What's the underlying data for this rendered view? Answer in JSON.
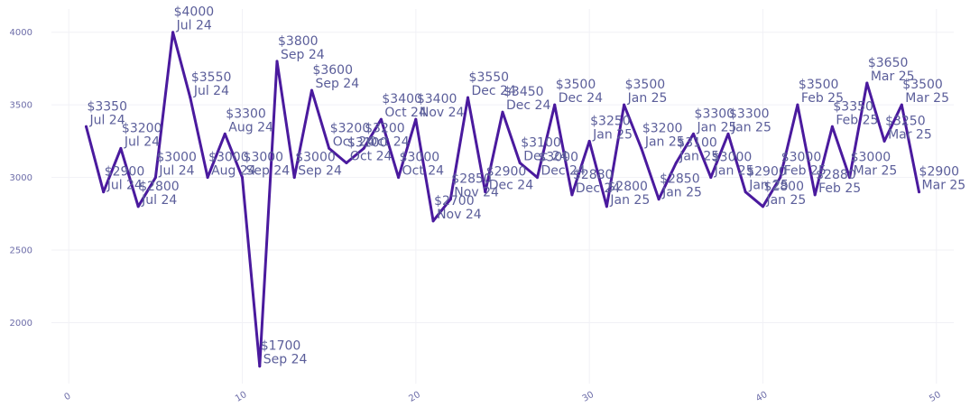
{
  "chart_data": {
    "type": "line",
    "title": "",
    "xlabel": "",
    "ylabel": "",
    "xlim": [
      -1,
      51
    ],
    "ylim": [
      1580,
      4160
    ],
    "x_ticks": [
      0,
      10,
      20,
      30,
      40,
      50
    ],
    "y_ticks": [
      2000,
      2500,
      3000,
      3500,
      4000
    ],
    "grid": true,
    "line_color": "#4a1a9e",
    "series": [
      {
        "name": "Price",
        "points": [
          {
            "x": 1,
            "y": 3350,
            "label": "$3350",
            "date": "Jul 24"
          },
          {
            "x": 2,
            "y": 2900,
            "label": "$2900",
            "date": "Jul 24"
          },
          {
            "x": 3,
            "y": 3200,
            "label": "$3200",
            "date": "Jul 24"
          },
          {
            "x": 4,
            "y": 2800,
            "label": "$2800",
            "date": "Jul 24"
          },
          {
            "x": 5,
            "y": 3000,
            "label": "$3000",
            "date": "Jul 24"
          },
          {
            "x": 6,
            "y": 4000,
            "label": "$4000",
            "date": "Jul 24"
          },
          {
            "x": 7,
            "y": 3550,
            "label": "$3550",
            "date": "Jul 24"
          },
          {
            "x": 8,
            "y": 3000,
            "label": "$3000",
            "date": "Aug 24"
          },
          {
            "x": 9,
            "y": 3300,
            "label": "$3300",
            "date": "Aug 24"
          },
          {
            "x": 10,
            "y": 3000,
            "label": "$3000",
            "date": "Sep 24"
          },
          {
            "x": 11,
            "y": 1700,
            "label": "$1700",
            "date": "Sep 24"
          },
          {
            "x": 12,
            "y": 3800,
            "label": "$3800",
            "date": "Sep 24"
          },
          {
            "x": 13,
            "y": 3000,
            "label": "$3000",
            "date": "Sep 24"
          },
          {
            "x": 14,
            "y": 3600,
            "label": "$3600",
            "date": "Sep 24"
          },
          {
            "x": 15,
            "y": 3200,
            "label": "$3200",
            "date": "Oct 24"
          },
          {
            "x": 16,
            "y": 3100,
            "label": "$3100",
            "date": "Oct 24"
          },
          {
            "x": 17,
            "y": 3200,
            "label": "$3200",
            "date": "Oct 24"
          },
          {
            "x": 18,
            "y": 3400,
            "label": "$3400",
            "date": "Oct 24"
          },
          {
            "x": 19,
            "y": 3000,
            "label": "$3000",
            "date": "Oct 24"
          },
          {
            "x": 20,
            "y": 3400,
            "label": "$3400",
            "date": "Nov 24"
          },
          {
            "x": 21,
            "y": 2700,
            "label": "$2700",
            "date": "Nov 24"
          },
          {
            "x": 22,
            "y": 2850,
            "label": "$2850",
            "date": "Nov 24"
          },
          {
            "x": 23,
            "y": 3550,
            "label": "$3550",
            "date": "Dec 24"
          },
          {
            "x": 24,
            "y": 2900,
            "label": "$2900",
            "date": "Dec 24"
          },
          {
            "x": 25,
            "y": 3450,
            "label": "$3450",
            "date": "Dec 24"
          },
          {
            "x": 26,
            "y": 3100,
            "label": "$3100",
            "date": "Dec 24"
          },
          {
            "x": 27,
            "y": 3000,
            "label": "$3000",
            "date": "Dec 24"
          },
          {
            "x": 28,
            "y": 3500,
            "label": "$3500",
            "date": "Dec 24"
          },
          {
            "x": 29,
            "y": 2880,
            "label": "$2880",
            "date": "Dec 24"
          },
          {
            "x": 30,
            "y": 3250,
            "label": "$3250",
            "date": "Jan 25"
          },
          {
            "x": 31,
            "y": 2800,
            "label": "$2800",
            "date": "Jan 25"
          },
          {
            "x": 32,
            "y": 3500,
            "label": "$3500",
            "date": "Jan 25"
          },
          {
            "x": 33,
            "y": 3200,
            "label": "$3200",
            "date": "Jan 25"
          },
          {
            "x": 34,
            "y": 2850,
            "label": "$2850",
            "date": "Jan 25"
          },
          {
            "x": 35,
            "y": 3100,
            "label": "$3100",
            "date": "Jan 25"
          },
          {
            "x": 36,
            "y": 3300,
            "label": "$3300",
            "date": "Jan 25"
          },
          {
            "x": 37,
            "y": 3000,
            "label": "$3000",
            "date": "Jan 25"
          },
          {
            "x": 38,
            "y": 3300,
            "label": "$3300",
            "date": "Jan 25"
          },
          {
            "x": 39,
            "y": 2900,
            "label": "$2900",
            "date": "Jan 25"
          },
          {
            "x": 40,
            "y": 2800,
            "label": "$2800",
            "date": "Jan 25"
          },
          {
            "x": 41,
            "y": 3000,
            "label": "$3000",
            "date": "Feb 25"
          },
          {
            "x": 42,
            "y": 3500,
            "label": "$3500",
            "date": "Feb 25"
          },
          {
            "x": 43,
            "y": 2880,
            "label": "$2880",
            "date": "Feb 25"
          },
          {
            "x": 44,
            "y": 3350,
            "label": "$3350",
            "date": "Feb 25"
          },
          {
            "x": 45,
            "y": 3000,
            "label": "$3000",
            "date": "Mar 25"
          },
          {
            "x": 46,
            "y": 3650,
            "label": "$3650",
            "date": "Mar 25"
          },
          {
            "x": 47,
            "y": 3250,
            "label": "$3250",
            "date": "Mar 25"
          },
          {
            "x": 48,
            "y": 3500,
            "label": "$3500",
            "date": "Mar 25"
          },
          {
            "x": 49,
            "y": 2900,
            "label": "$2900",
            "date": "Mar 25"
          }
        ]
      }
    ]
  }
}
